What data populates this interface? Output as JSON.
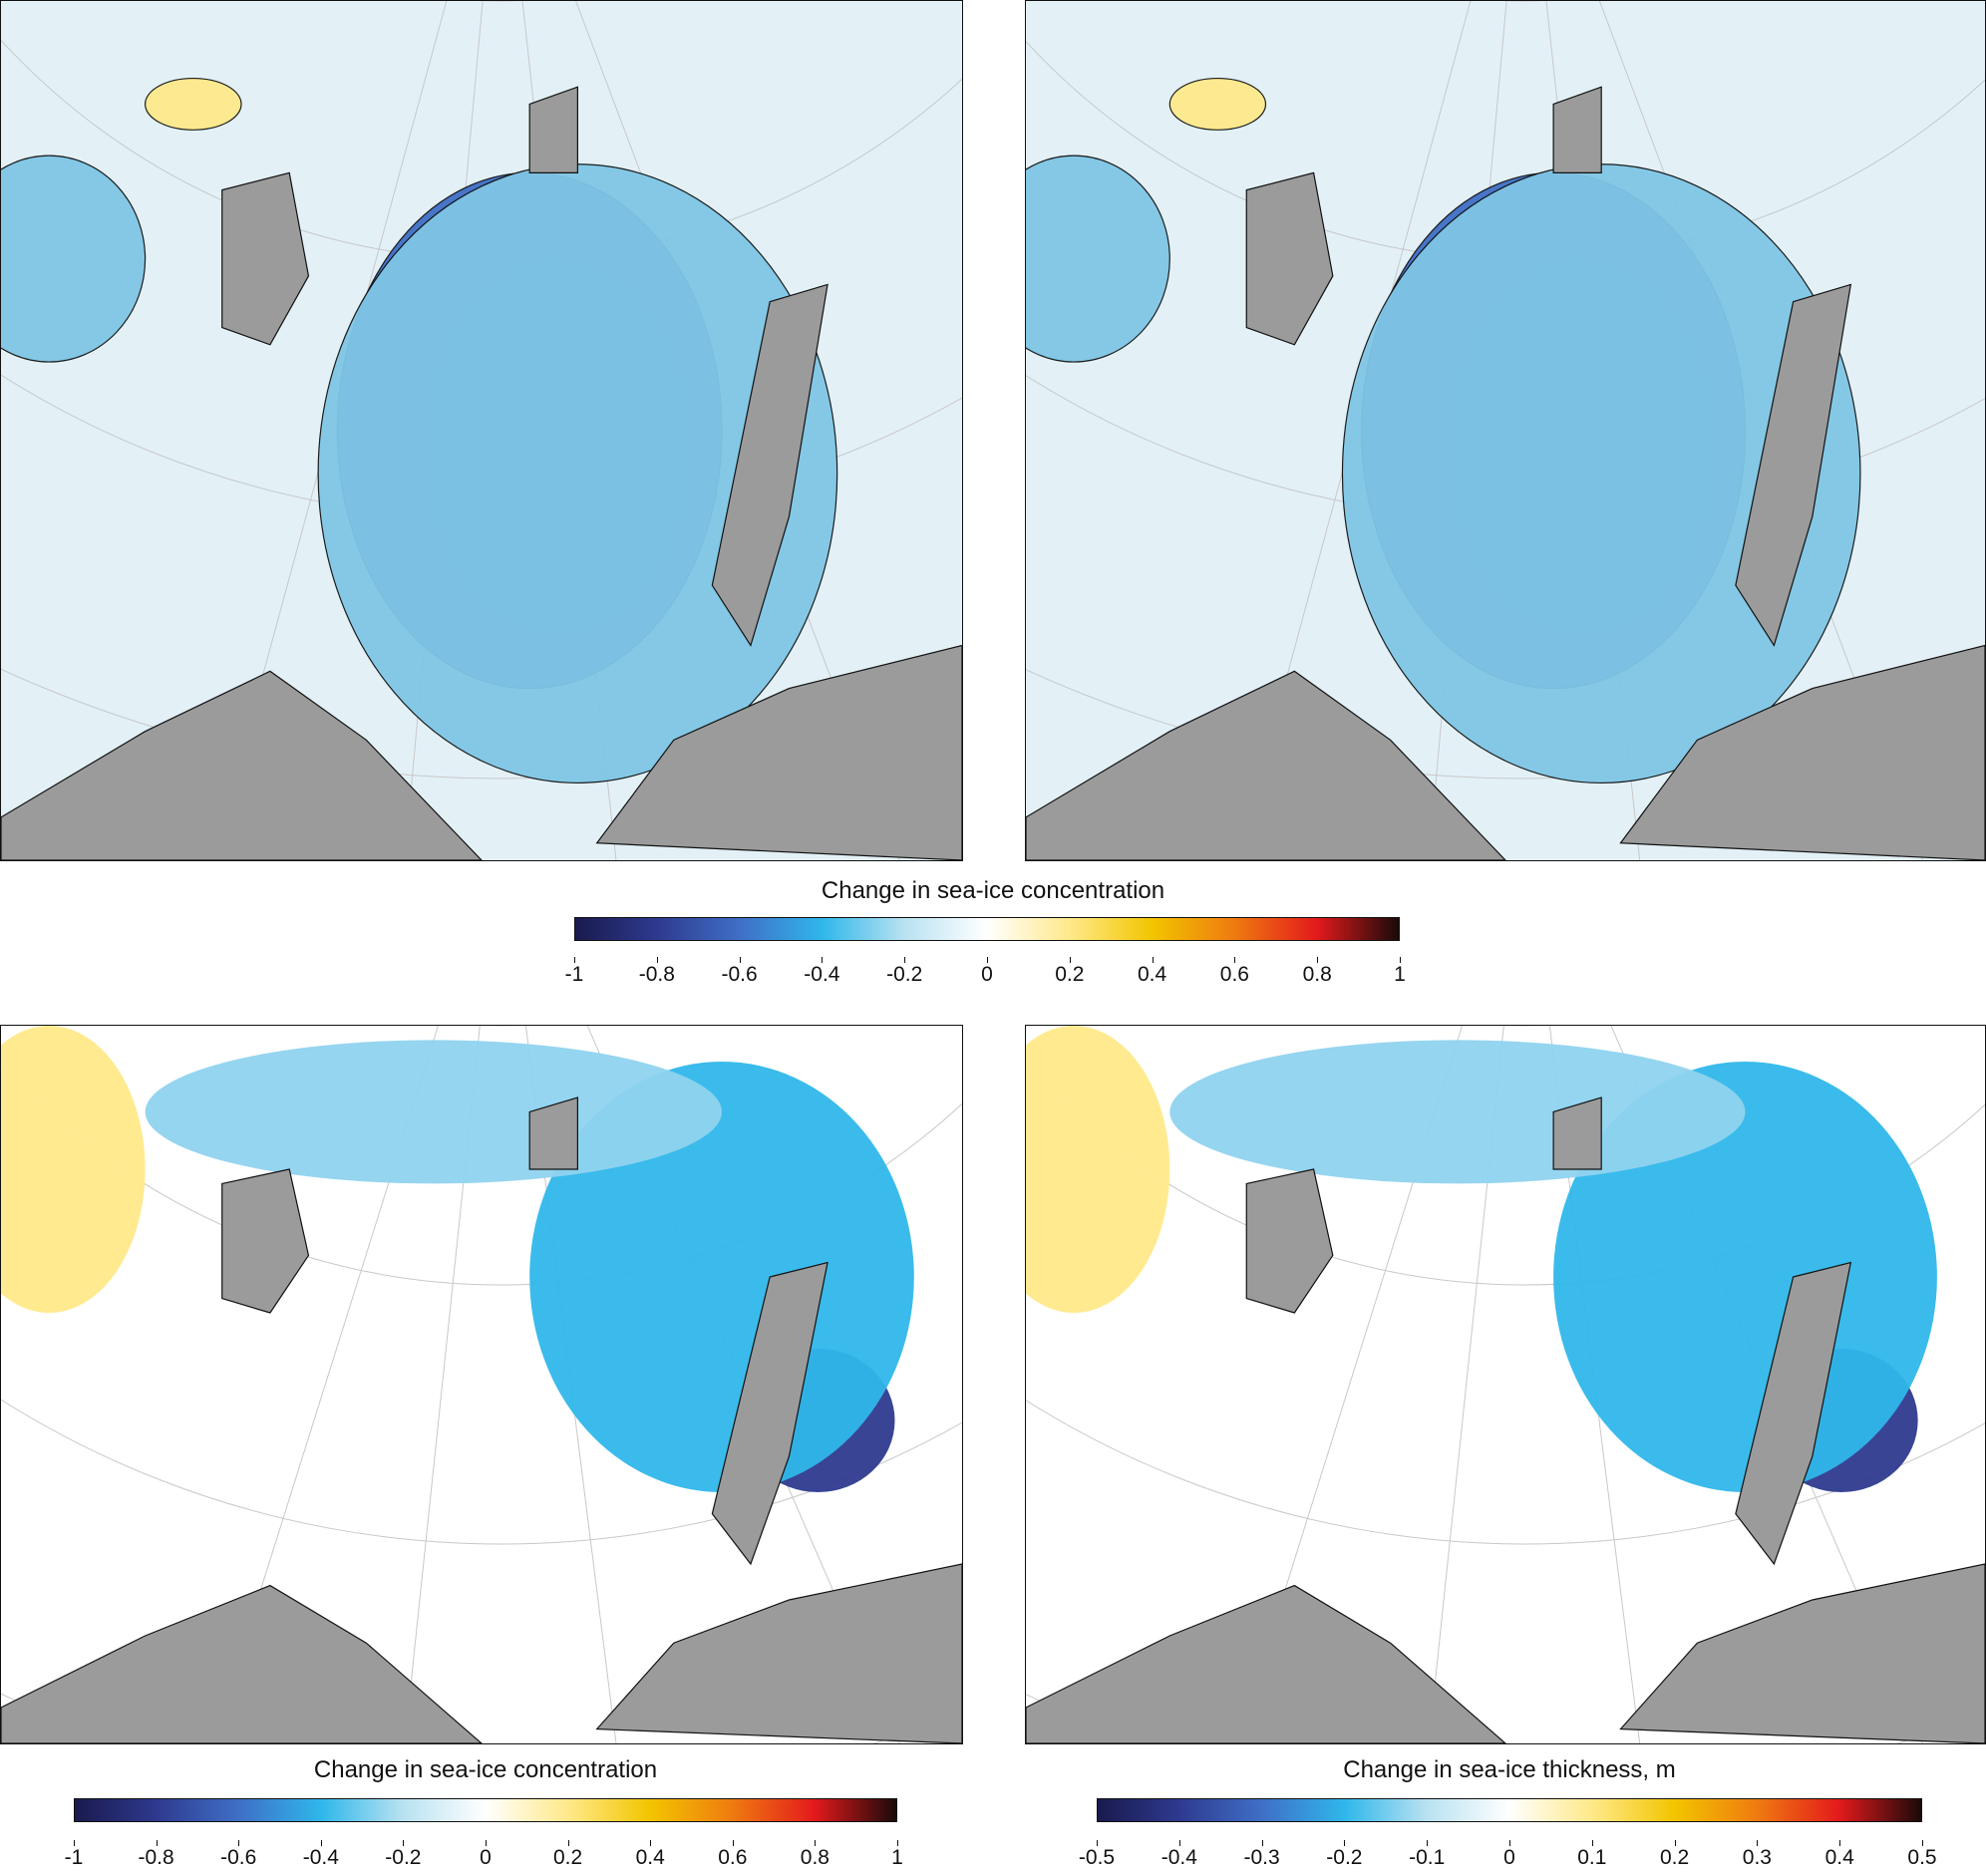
{
  "figure": {
    "panels": [
      {
        "name": "map-concentration-contours-a",
        "style": "contour"
      },
      {
        "name": "map-concentration-contours-b",
        "style": "contour"
      },
      {
        "name": "map-concentration-shaded",
        "style": "shaded"
      },
      {
        "name": "map-thickness-shaded",
        "style": "shaded"
      }
    ]
  },
  "colorbars": {
    "top": {
      "title": "Change in sea-ice concentration",
      "ticks": [
        "-1",
        "-0.8",
        "-0.6",
        "-0.4",
        "-0.2",
        "0",
        "0.2",
        "0.4",
        "0.6",
        "0.8",
        "1"
      ],
      "range": [
        -1,
        1
      ]
    },
    "bottom_left": {
      "title": "Change in sea-ice concentration",
      "ticks": [
        "-1",
        "-0.8",
        "-0.6",
        "-0.4",
        "-0.2",
        "0",
        "0.2",
        "0.4",
        "0.6",
        "0.8",
        "1"
      ],
      "range": [
        -1,
        1
      ]
    },
    "bottom_right": {
      "title": "Change in sea-ice thickness, m",
      "ticks": [
        "-0.5",
        "-0.4",
        "-0.3",
        "-0.2",
        "-0.1",
        "0",
        "0.1",
        "0.2",
        "0.3",
        "0.4",
        "0.5"
      ],
      "range": [
        -0.5,
        0.5
      ]
    }
  },
  "colors": {
    "land": "#9b9b9b",
    "scale_stops": [
      "#1a1a4e",
      "#2e3a8f",
      "#3f6fc6",
      "#2fb7ea",
      "#b9e2f1",
      "#ffffff",
      "#ffe98a",
      "#f2c500",
      "#ef7b10",
      "#e31a1c",
      "#1a0a0a"
    ]
  }
}
